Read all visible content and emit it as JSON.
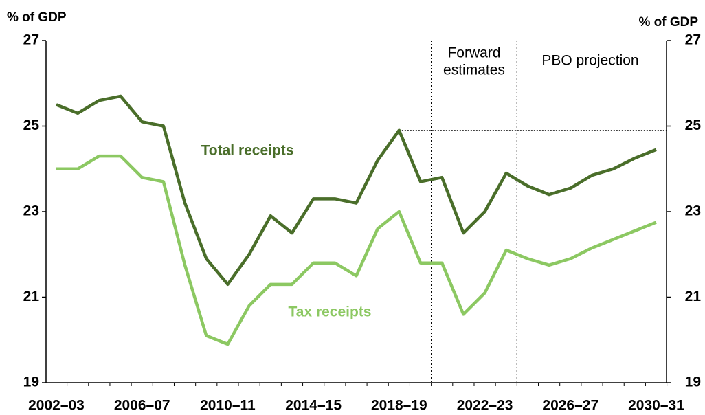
{
  "chart_data": {
    "type": "line",
    "y_label": "% of GDP",
    "y2_label": "% of GDP",
    "categories": [
      "2002–03",
      null,
      null,
      null,
      "2006–07",
      null,
      null,
      null,
      "2010–11",
      null,
      null,
      null,
      "2014–15",
      null,
      null,
      null,
      "2018–19",
      null,
      null,
      null,
      "2022–23",
      null,
      null,
      null,
      "2026–27",
      null,
      null,
      null,
      "2030–31"
    ],
    "series": [
      {
        "name": "Total receipts",
        "color": "#4a6e2a",
        "values": [
          25.5,
          25.3,
          25.6,
          25.7,
          25.1,
          25.0,
          23.2,
          21.9,
          21.3,
          22.0,
          22.9,
          22.5,
          23.3,
          23.3,
          23.2,
          24.2,
          24.9,
          23.7,
          23.8,
          22.5,
          23.0,
          23.9,
          23.6,
          23.4,
          23.55,
          23.85,
          24.0,
          24.25,
          24.45
        ]
      },
      {
        "name": "Tax receipts",
        "color": "#8cc862",
        "values": [
          24.0,
          24.0,
          24.3,
          24.3,
          23.8,
          23.7,
          21.75,
          20.1,
          19.9,
          20.8,
          21.3,
          21.3,
          21.8,
          21.8,
          21.5,
          22.6,
          23.0,
          21.8,
          21.8,
          20.6,
          21.1,
          22.1,
          21.9,
          21.75,
          21.9,
          22.15,
          22.35,
          22.55,
          22.75
        ]
      }
    ],
    "ylim": [
      19,
      27
    ],
    "yticks": [
      19,
      21,
      23,
      25,
      27
    ],
    "y2lim": [
      19,
      27
    ],
    "y2ticks": [
      19,
      21,
      23,
      25,
      27
    ],
    "reference_line": 24.9,
    "annotations": [
      [
        "Forward",
        "estimates"
      ],
      [
        "PBO projection"
      ]
    ]
  }
}
